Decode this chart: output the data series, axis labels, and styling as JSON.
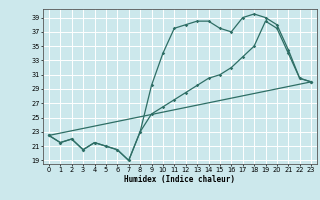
{
  "xlabel": "Humidex (Indice chaleur)",
  "ylabel": "",
  "bg_color": "#cce8ec",
  "grid_color": "#ffffff",
  "line_color": "#2e6e65",
  "xlim": [
    -0.5,
    23.5
  ],
  "ylim": [
    18.5,
    40.2
  ],
  "xticks": [
    0,
    1,
    2,
    3,
    4,
    5,
    6,
    7,
    8,
    9,
    10,
    11,
    12,
    13,
    14,
    15,
    16,
    17,
    18,
    19,
    20,
    21,
    22,
    23
  ],
  "yticks": [
    19,
    21,
    23,
    25,
    27,
    29,
    31,
    33,
    35,
    37,
    39
  ],
  "line1_x": [
    0,
    1,
    2,
    3,
    4,
    5,
    6,
    7,
    8,
    9,
    10,
    11,
    12,
    13,
    14,
    15,
    16,
    17,
    18,
    19,
    20,
    21,
    22,
    23
  ],
  "line1_y": [
    22.5,
    21.5,
    22.0,
    20.5,
    21.5,
    21.0,
    20.5,
    19.0,
    23.0,
    29.5,
    34.0,
    37.5,
    38.0,
    38.5,
    38.5,
    37.5,
    37.0,
    39.0,
    39.5,
    39.0,
    38.0,
    34.5,
    30.5,
    30.0
  ],
  "line2_x": [
    0,
    1,
    2,
    3,
    4,
    5,
    6,
    7,
    8,
    9,
    10,
    11,
    12,
    13,
    14,
    15,
    16,
    17,
    18,
    19,
    20,
    21,
    22,
    23
  ],
  "line2_y": [
    22.5,
    21.5,
    22.0,
    20.5,
    21.5,
    21.0,
    20.5,
    19.0,
    23.0,
    25.5,
    26.5,
    27.5,
    28.5,
    29.5,
    30.5,
    31.0,
    32.0,
    33.5,
    35.0,
    38.5,
    37.5,
    34.0,
    30.5,
    30.0
  ],
  "line3_x": [
    0,
    23
  ],
  "line3_y": [
    22.5,
    30.0
  ],
  "marker_size": 1.8,
  "linewidth": 0.9,
  "axis_fontsize": 5.5,
  "tick_fontsize": 4.8
}
